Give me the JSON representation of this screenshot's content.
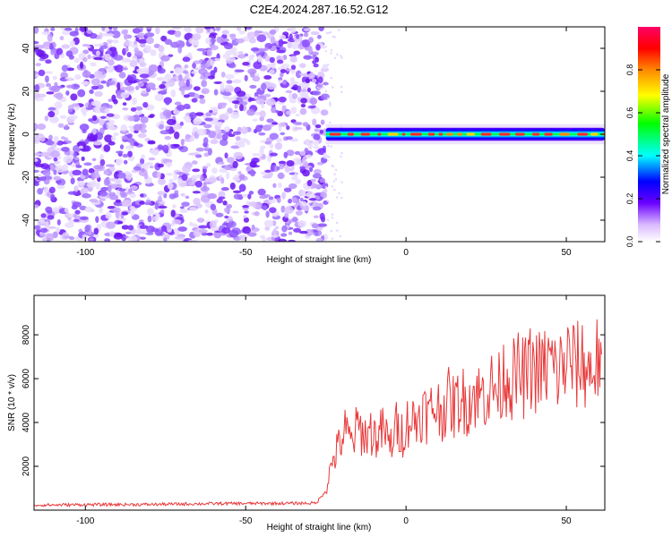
{
  "title": "C2E4.2024.287.16.52.G12",
  "colors": {
    "snr_line": "#e8393a",
    "axis": "#000000",
    "cloud": "#8a2be2"
  },
  "chart_data": [
    {
      "type": "heatmap",
      "xlabel": "Height of straight line (km)",
      "ylabel": "Frequency (Hz)",
      "xlim": [
        -116,
        62
      ],
      "ylim": [
        -50,
        50
      ],
      "xticks": [
        -100,
        -50,
        0,
        50
      ],
      "yticks": [
        -40,
        -20,
        0,
        20,
        40
      ],
      "noise_region": {
        "x": [
          -116,
          -25
        ],
        "note": "scattered low-amplitude noise across all frequencies"
      },
      "signal_band": {
        "x": [
          -25,
          62
        ],
        "center_freq": 0,
        "half_width_hz": 3,
        "peak_amplitude": 0.95
      },
      "colorbar": {
        "label": "Normalized spectral amplitude",
        "range": [
          0,
          1
        ],
        "ticks": [
          0,
          0.2,
          0.4,
          0.6,
          0.8
        ],
        "tick_labels": [
          "0.0",
          "0.2",
          "0.4",
          "0.6",
          "0.8"
        ]
      }
    },
    {
      "type": "line",
      "xlabel": "Height of straight line (km)",
      "ylabel": "SNR (10 * v/v)",
      "xlim": [
        -116,
        62
      ],
      "ylim": [
        0,
        9800
      ],
      "xticks": [
        -100,
        -50,
        0,
        50
      ],
      "yticks": [
        2000,
        4000,
        6000,
        8000
      ],
      "series": [
        {
          "name": "SNR",
          "x": [
            -116,
            -100,
            -80,
            -60,
            -40,
            -28,
            -25,
            -23,
            -21,
            -19,
            -17,
            -15,
            -13,
            -11,
            -9,
            -7,
            -5,
            -3,
            -1,
            1,
            3,
            5,
            7,
            9,
            11,
            13,
            15,
            17,
            19,
            21,
            23,
            25,
            27,
            29,
            31,
            33,
            35,
            37,
            39,
            41,
            43,
            45,
            47,
            49,
            51,
            53,
            55,
            57,
            59,
            61
          ],
          "values": [
            230,
            250,
            260,
            300,
            310,
            320,
            900,
            2200,
            2900,
            3600,
            3100,
            3800,
            3400,
            3600,
            3300,
            3700,
            2900,
            3800,
            3500,
            4200,
            4000,
            4600,
            4300,
            4800,
            4500,
            5000,
            4700,
            5100,
            4900,
            5300,
            5200,
            5400,
            5600,
            5500,
            6300,
            5900,
            6200,
            6000,
            6500,
            6300,
            6400,
            6800,
            6200,
            6600,
            6900,
            6500,
            6800,
            6300,
            6700,
            7100
          ]
        }
      ]
    }
  ]
}
